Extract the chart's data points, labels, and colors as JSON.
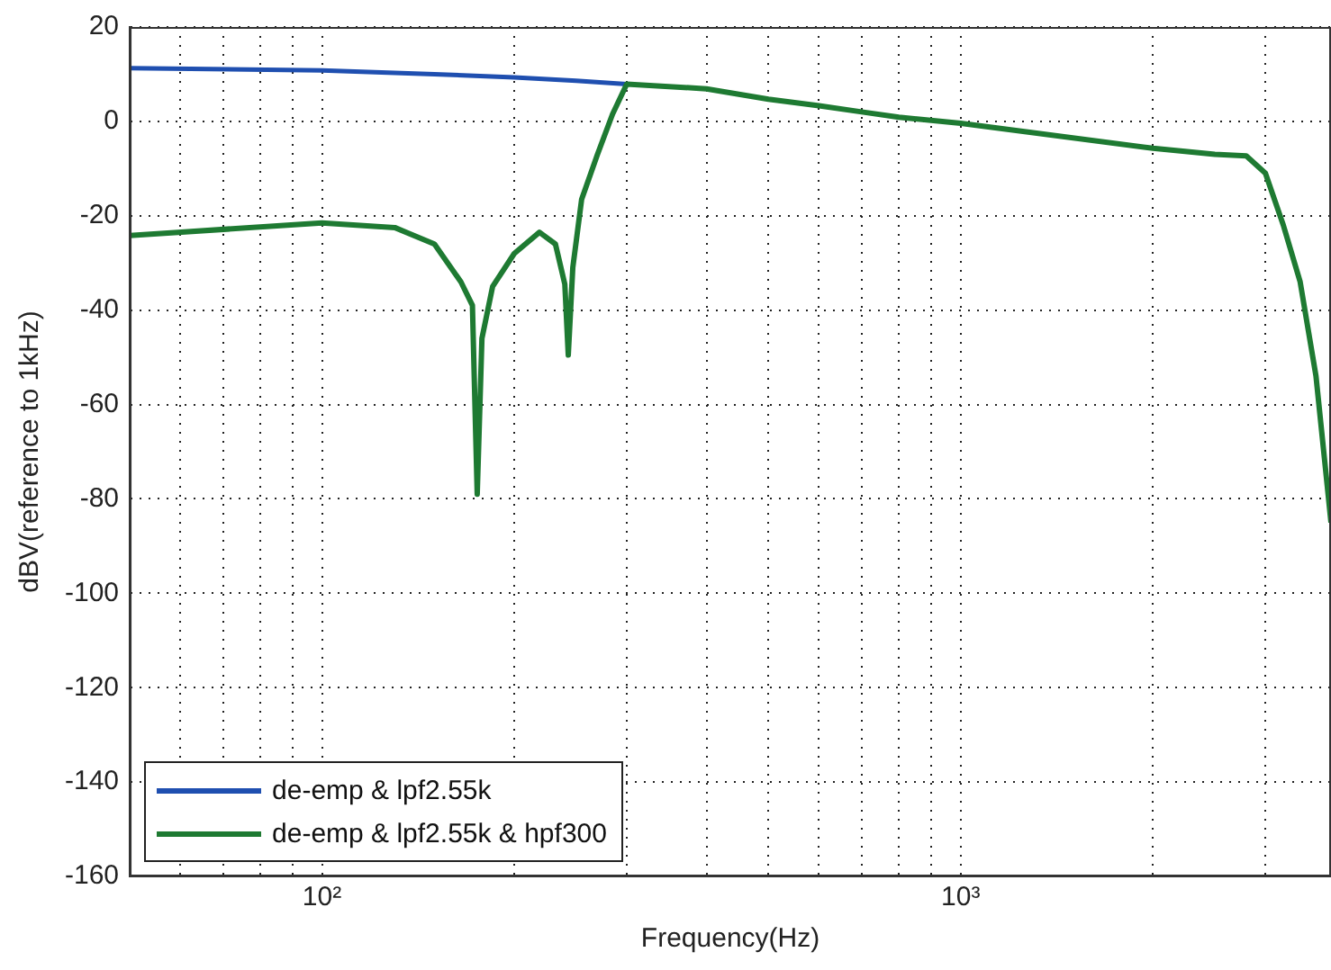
{
  "chart_data": {
    "type": "line",
    "xlabel": "Frequency(Hz)",
    "ylabel": "dBV(reference to 1kHz)",
    "log": "x",
    "grid": true,
    "line_style": "solid",
    "marker": "none",
    "legend": "bottom left",
    "xlim": [
      50,
      3800
    ],
    "xticks": [
      {
        "value": 60,
        "label": null
      },
      {
        "value": 70,
        "label": null
      },
      {
        "value": 80,
        "label": null
      },
      {
        "value": 90,
        "label": null
      },
      {
        "value": 100,
        "label": "10²"
      },
      {
        "value": 200,
        "label": null
      },
      {
        "value": 300,
        "label": null
      },
      {
        "value": 400,
        "label": null
      },
      {
        "value": 500,
        "label": null
      },
      {
        "value": 600,
        "label": null
      },
      {
        "value": 700,
        "label": null
      },
      {
        "value": 800,
        "label": null
      },
      {
        "value": 900,
        "label": null
      },
      {
        "value": 1000,
        "label": "10³"
      },
      {
        "value": 2000,
        "label": null
      },
      {
        "value": 3000,
        "label": null
      }
    ],
    "ylim": [
      -160,
      20
    ],
    "yticks": [
      -160,
      -140,
      -120,
      -100,
      -80,
      -60,
      -40,
      -20,
      0,
      20
    ],
    "series": [
      {
        "name": "de-emp & lpf2.55k",
        "color": "#1f4fb0",
        "x": [
          50,
          100,
          150,
          200,
          250,
          300
        ],
        "values": [
          11.3,
          10.8,
          10,
          9.3,
          8.6,
          7.9
        ]
      },
      {
        "name": "de-emp & lpf2.55k & hpf300",
        "color": "#1e7a32",
        "x": [
          50,
          100,
          130,
          150,
          165,
          172,
          175,
          178,
          185,
          200,
          219,
          232,
          240,
          243,
          247,
          255,
          270,
          285,
          300,
          400,
          500,
          600,
          700,
          800,
          1000,
          2000,
          2500,
          2800,
          3000,
          3200,
          3400,
          3600,
          3800
        ],
        "values": [
          -24.2,
          -21.5,
          -22.5,
          -26,
          -34,
          -39,
          -79,
          -46,
          -35,
          -28,
          -23.5,
          -26,
          -34.5,
          -49.5,
          -31,
          -16.5,
          -7,
          1.5,
          7.9,
          6.9,
          4.7,
          3.3,
          2,
          0.9,
          -0.4,
          -5.7,
          -7,
          -7.3,
          -11,
          -22,
          -34,
          -54,
          -85
        ]
      }
    ]
  }
}
